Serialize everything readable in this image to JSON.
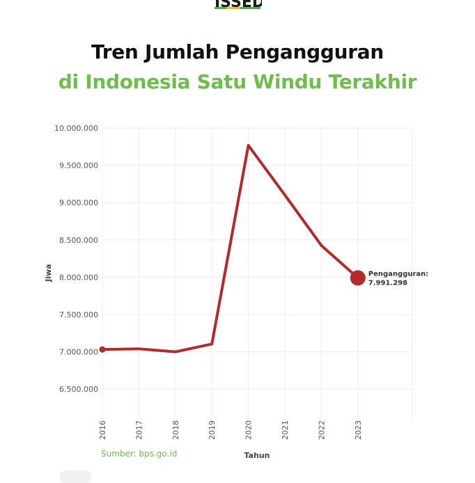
{
  "logo": {
    "text": "ISSED"
  },
  "title_line1": "Tren Jumlah Pengangguran",
  "title_line2": "di Indonesia Satu Windu Terakhir",
  "source": "Sumber: bps.go.id",
  "colors": {
    "line": "#b52a28",
    "title_green": "#6cbf4a",
    "grid": "#ececec"
  },
  "chart_data": {
    "type": "line",
    "title": "",
    "xlabel": "Tahun",
    "ylabel": "Jiwa",
    "x": [
      "2016",
      "2017",
      "2018",
      "2019",
      "2020",
      "2021",
      "2022",
      "2023"
    ],
    "series": [
      {
        "name": "Pengangguran",
        "values": [
          7031775,
          7040323,
          7000000,
          7104424,
          9767754,
          9102052,
          8425931,
          7991298
        ]
      }
    ],
    "yticks": [
      "6.500.000",
      "7.000.000",
      "7.500.000",
      "8.000.000",
      "8.500.000",
      "9.000.000",
      "9.500.000",
      "10.000.000"
    ],
    "ytick_values": [
      6500000,
      7000000,
      7500000,
      8000000,
      8500000,
      9000000,
      9500000,
      10000000
    ],
    "ylim": [
      6100000,
      10000000
    ],
    "grid": true,
    "annotation": {
      "label": "Pengangguran:",
      "value": "7.991.298",
      "year": "2023"
    }
  }
}
